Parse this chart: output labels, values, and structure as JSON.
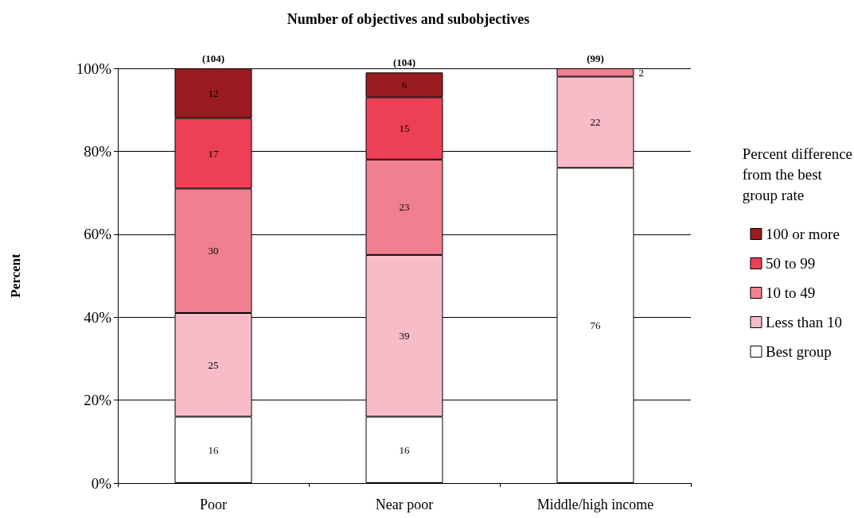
{
  "chart_data": {
    "type": "bar",
    "title": "Number of objectives and subobjectives",
    "ylabel": "Percent",
    "legend_title": "Percent difference\nfrom the best\ngroup rate",
    "categories": [
      "Poor",
      "Near poor",
      "Middle/high income"
    ],
    "series": [
      {
        "name": "Best group",
        "color": "#ffffff",
        "values": [
          16,
          16,
          76
        ]
      },
      {
        "name": "Less than 10",
        "color": "#f7bcc8",
        "values": [
          25,
          39,
          22
        ]
      },
      {
        "name": "10 to 49",
        "color": "#f08090",
        "values": [
          30,
          23,
          2
        ]
      },
      {
        "name": "50 to 99",
        "color": "#ee4055",
        "values": [
          17,
          15,
          null
        ]
      },
      {
        "name": "100 or more",
        "color": "#9b1c20",
        "values": [
          12,
          6,
          null
        ]
      }
    ],
    "stacked": true,
    "data_labels": true,
    "ylim": [
      0,
      100
    ],
    "yticks": [
      {
        "value": 0,
        "label": "0%"
      },
      {
        "value": 20,
        "label": "20%"
      },
      {
        "value": 40,
        "label": "40%"
      },
      {
        "value": 60,
        "label": "60%"
      },
      {
        "value": 80,
        "label": "80%"
      },
      {
        "value": 100,
        "label": "100%"
      }
    ],
    "annotations": [
      {
        "text": "(104)",
        "x": "Poor",
        "y": 100
      },
      {
        "text": "(104)",
        "x": "Near poor",
        "y": 99
      },
      {
        "text": "(99)",
        "x": "Middle/high income",
        "y": 100
      }
    ],
    "grid": "y",
    "legend": "right"
  }
}
